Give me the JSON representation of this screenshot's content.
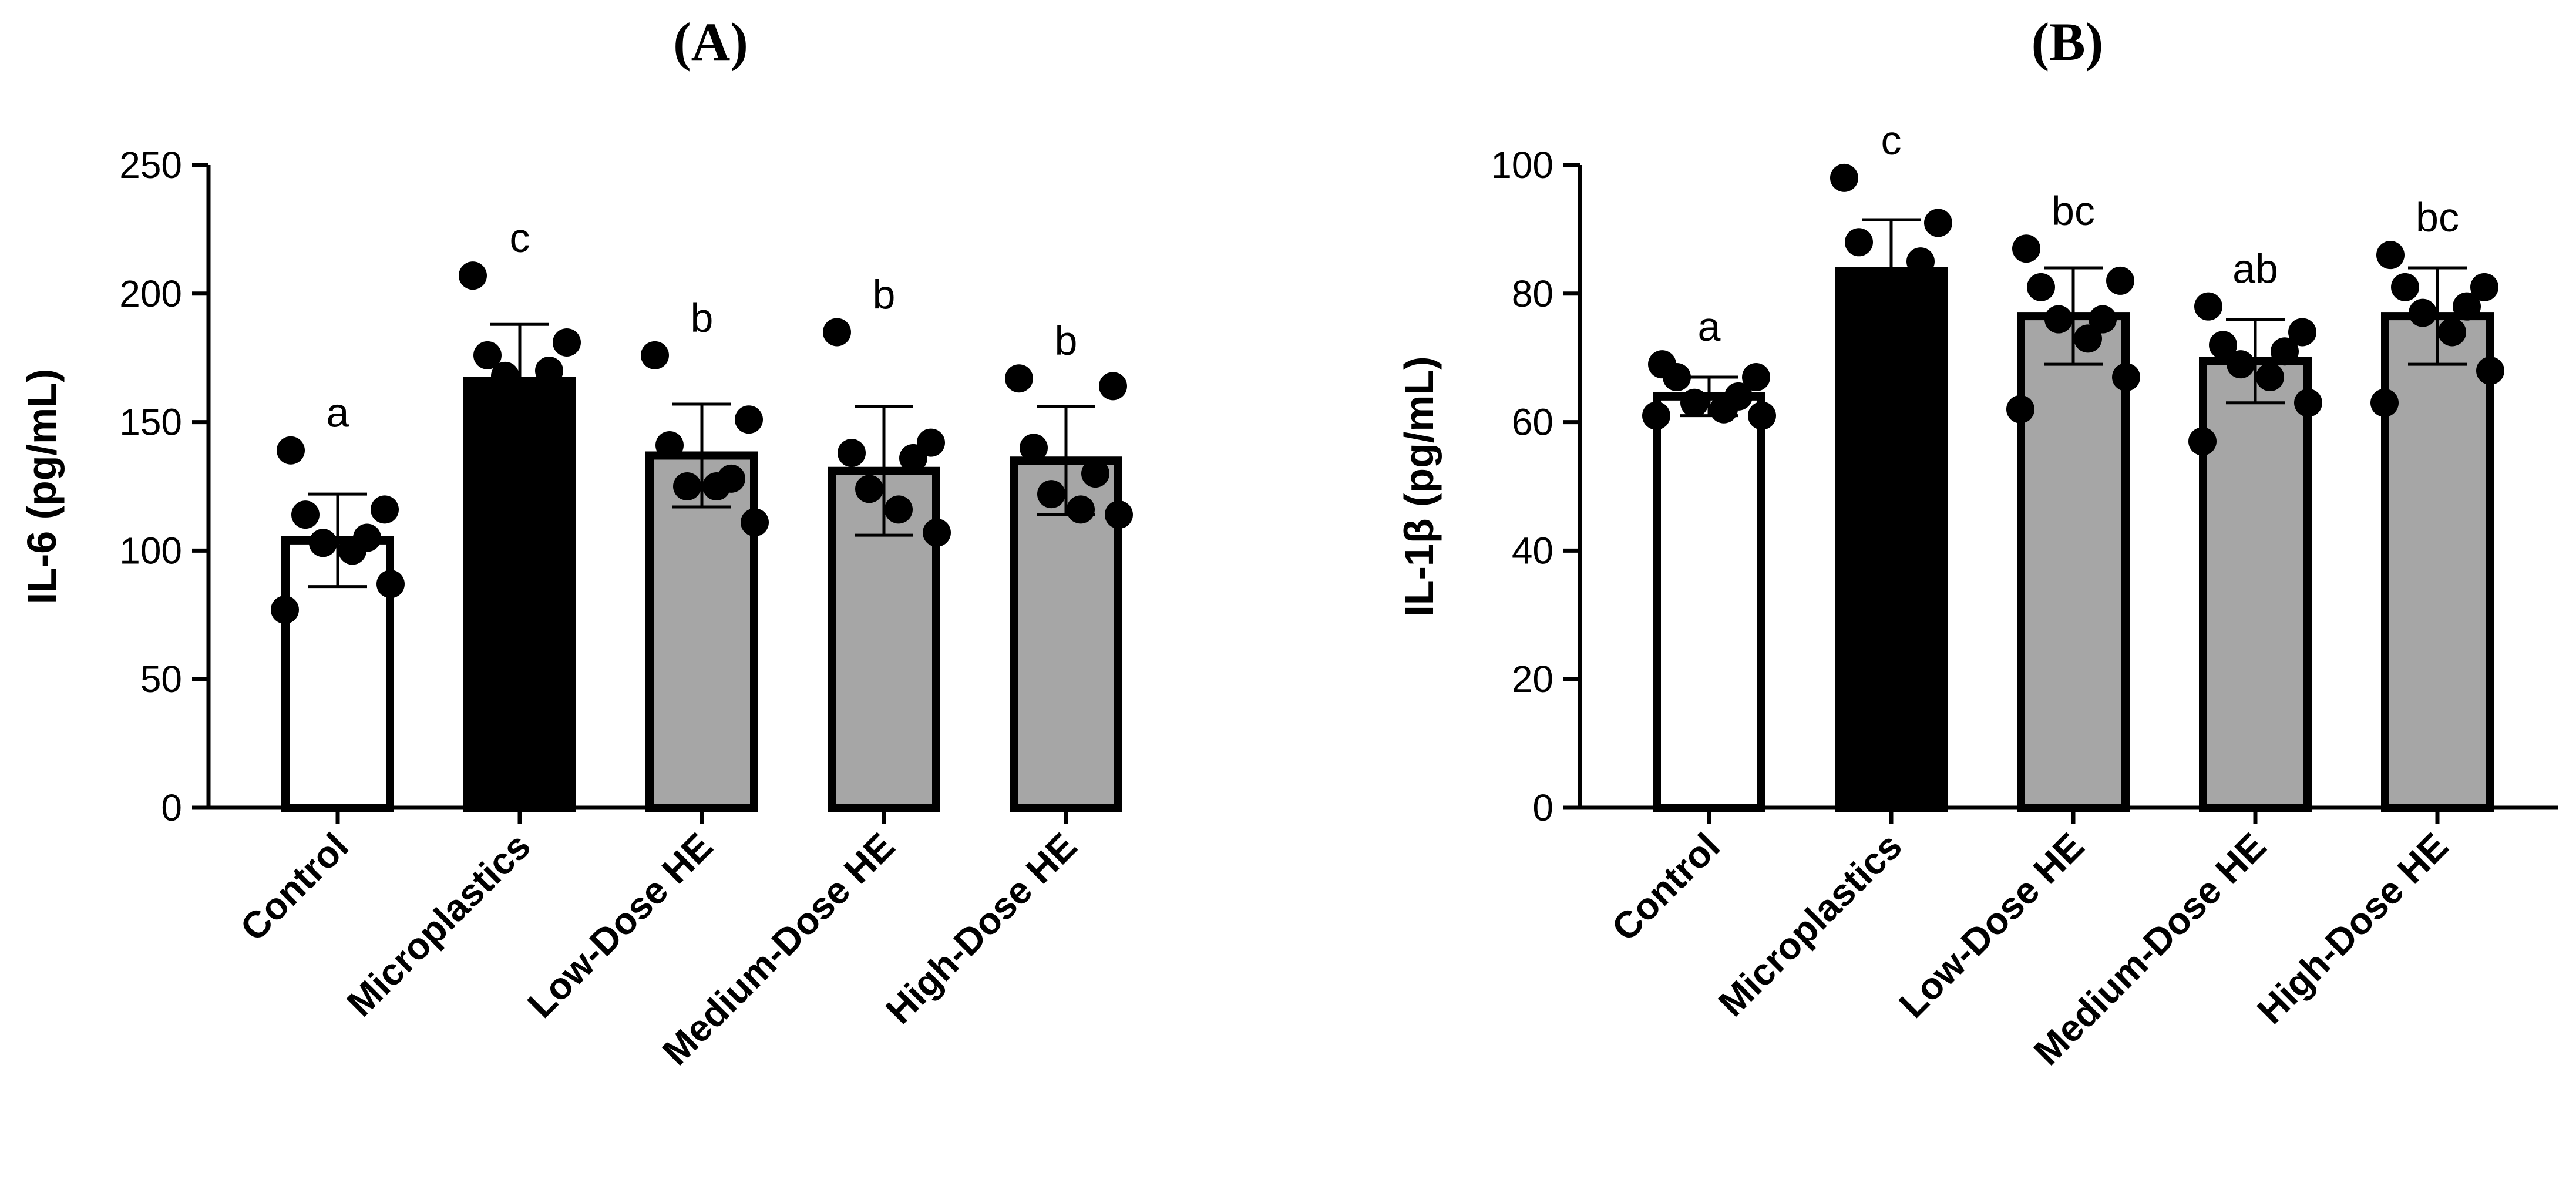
{
  "chart_data": [
    {
      "type": "bar",
      "title": "(A)",
      "xlabel": "",
      "ylabel": "IL-6 (pg/mL)",
      "ylim": [
        0,
        250
      ],
      "yticks": [
        0,
        50,
        100,
        150,
        200,
        250
      ],
      "categories": [
        "Control",
        "Microplastics",
        "Low-Dose HE",
        "Medium-Dose HE",
        "High-Dose HE"
      ],
      "values": [
        104,
        166,
        137,
        131,
        135
      ],
      "errors": [
        18,
        22,
        20,
        25,
        21
      ],
      "bar_colors": [
        "#ffffff",
        "#000000",
        "#a6a6a6",
        "#a6a6a6",
        "#a6a6a6"
      ],
      "significance": [
        "a",
        "c",
        "b",
        "b",
        "b"
      ],
      "points": [
        [
          139,
          116,
          114,
          105,
          103,
          100,
          87,
          77
        ],
        [
          207,
          181,
          176,
          170,
          168
        ],
        [
          176,
          151,
          141,
          128,
          125,
          125,
          111
        ],
        [
          185,
          142,
          138,
          136,
          124,
          116,
          107
        ],
        [
          167,
          164,
          140,
          130,
          122,
          116,
          114
        ]
      ]
    },
    {
      "type": "bar",
      "title": "(B)",
      "xlabel": "",
      "ylabel": "IL-1β (pg/mL)",
      "ylim": [
        0,
        100
      ],
      "yticks": [
        0,
        20,
        40,
        60,
        80,
        100
      ],
      "categories": [
        "Control",
        "Microplastics",
        "Low-Dose HE",
        "Medium-Dose HE",
        "High-Dose HE"
      ],
      "values": [
        64,
        83.5,
        76.5,
        69.5,
        76.5
      ],
      "errors": [
        3,
        8,
        7.5,
        6.5,
        7.5
      ],
      "bar_colors": [
        "#ffffff",
        "#000000",
        "#a6a6a6",
        "#a6a6a6",
        "#a6a6a6"
      ],
      "significance": [
        "a",
        "c",
        "bc",
        "ab",
        "bc"
      ],
      "points": [
        [
          69,
          67,
          67,
          64,
          63,
          62,
          61,
          61
        ],
        [
          98,
          91,
          88,
          85
        ],
        [
          87,
          82,
          81,
          76,
          76,
          73,
          67,
          62
        ],
        [
          78,
          74,
          72,
          71,
          69,
          67,
          63,
          57
        ],
        [
          86,
          81,
          81,
          78,
          77,
          74,
          68,
          63
        ]
      ]
    }
  ]
}
